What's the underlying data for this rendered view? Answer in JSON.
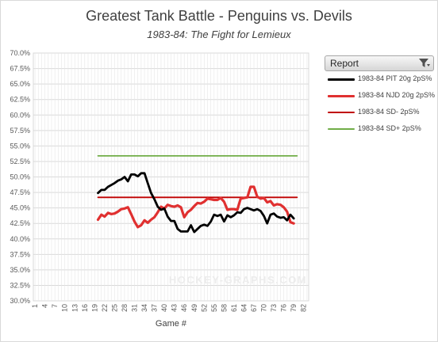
{
  "chart_data": {
    "type": "line",
    "title": "Greatest Tank Battle - Penguins vs. Devils",
    "subtitle": "1983-84: The Fight for Lemieux",
    "xlabel": "Game #",
    "ylabel": "",
    "ylim": [
      30.0,
      70.0
    ],
    "y_ticks": [
      "30.0%",
      "32.5%",
      "35.0%",
      "37.5%",
      "40.0%",
      "42.5%",
      "45.0%",
      "47.5%",
      "50.0%",
      "52.5%",
      "55.0%",
      "57.5%",
      "60.0%",
      "62.5%",
      "65.0%",
      "67.5%",
      "70.0%"
    ],
    "x_ticks": [
      "1",
      "4",
      "7",
      "10",
      "13",
      "16",
      "19",
      "22",
      "25",
      "28",
      "31",
      "34",
      "37",
      "40",
      "43",
      "46",
      "49",
      "52",
      "55",
      "58",
      "61",
      "64",
      "67",
      "70",
      "73",
      "76",
      "79",
      "82"
    ],
    "grid": true,
    "legend_position": "right",
    "legend_title": "Report",
    "watermark": "HOCKEY-GRAPHS.COM",
    "series": [
      {
        "name": "1983-84 PIT 20g 2pS%",
        "color": "#000000",
        "x": [
          20,
          21,
          22,
          23,
          24,
          25,
          26,
          27,
          28,
          29,
          30,
          31,
          32,
          33,
          34,
          35,
          36,
          37,
          38,
          39,
          40,
          41,
          42,
          43,
          44,
          45,
          46,
          47,
          48,
          49,
          50,
          51,
          52,
          53,
          54,
          55,
          56,
          57,
          58,
          59,
          60,
          61,
          62,
          63,
          64,
          65,
          66,
          67,
          68,
          69,
          70,
          71,
          72,
          73,
          74,
          75,
          76,
          77,
          78,
          79,
          80
        ],
        "values": [
          47.4,
          47.9,
          47.9,
          48.4,
          48.7,
          49.0,
          49.4,
          49.6,
          50.0,
          49.3,
          50.4,
          50.4,
          50.1,
          50.6,
          50.6,
          49.0,
          47.4,
          46.4,
          45.2,
          44.7,
          44.9,
          43.6,
          42.9,
          42.9,
          41.6,
          41.2,
          41.2,
          41.2,
          42.2,
          41.1,
          41.6,
          42.1,
          42.3,
          42.1,
          42.8,
          43.9,
          43.7,
          43.9,
          42.8,
          43.8,
          43.5,
          43.8,
          44.3,
          44.2,
          44.8,
          45.0,
          44.8,
          44.6,
          44.8,
          44.5,
          43.7,
          42.5,
          43.9,
          44.1,
          43.6,
          43.4,
          43.5,
          43.0,
          43.9,
          43.3,
          null
        ]
      },
      {
        "name": "1983-84 NJD 20g 2pS%",
        "color": "#e03030",
        "x": [
          20,
          21,
          22,
          23,
          24,
          25,
          26,
          27,
          28,
          29,
          30,
          31,
          32,
          33,
          34,
          35,
          36,
          37,
          38,
          39,
          40,
          41,
          42,
          43,
          44,
          45,
          46,
          47,
          48,
          49,
          50,
          51,
          52,
          53,
          54,
          55,
          56,
          57,
          58,
          59,
          60,
          61,
          62,
          63,
          64,
          65,
          66,
          67,
          68,
          69,
          70,
          71,
          72,
          73,
          74,
          75,
          76,
          77,
          78,
          79,
          80
        ],
        "values": [
          43.1,
          43.9,
          43.6,
          44.2,
          44.0,
          44.1,
          44.4,
          44.8,
          44.9,
          45.1,
          44.0,
          42.8,
          41.9,
          42.2,
          43.0,
          42.6,
          43.1,
          43.5,
          44.3,
          45.2,
          44.9,
          45.5,
          45.3,
          45.2,
          45.4,
          45.1,
          43.5,
          44.3,
          44.7,
          45.3,
          45.8,
          45.7,
          46.0,
          46.5,
          46.4,
          46.3,
          46.3,
          46.6,
          46.0,
          44.7,
          44.8,
          44.8,
          44.7,
          46.5,
          46.6,
          46.7,
          48.4,
          48.4,
          46.8,
          46.5,
          46.6,
          45.9,
          46.1,
          45.4,
          45.6,
          45.5,
          45.1,
          44.4,
          42.7,
          42.5,
          null
        ]
      },
      {
        "name": "1983-84 SD- 2pS%",
        "color": "#c00000",
        "x": [
          20,
          80
        ],
        "values": [
          46.7,
          46.7
        ]
      },
      {
        "name": "1983-84 SD+ 2pS%",
        "color": "#70ad47",
        "x": [
          20,
          80
        ],
        "values": [
          53.4,
          53.4
        ]
      }
    ]
  }
}
